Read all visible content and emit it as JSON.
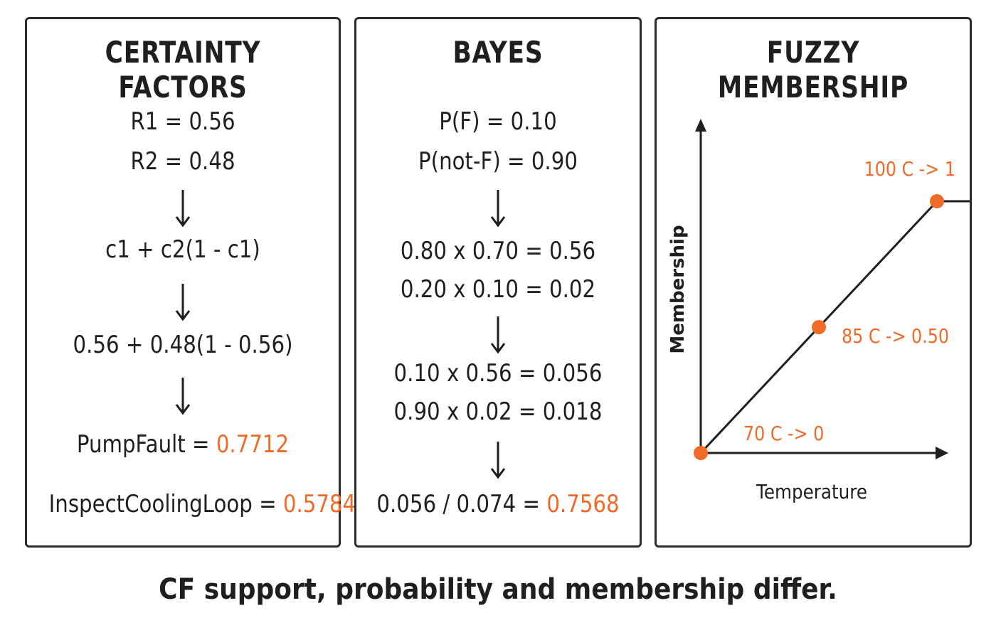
{
  "panels": {
    "cf": {
      "title": "CERTAINTY FACTORS",
      "r1": "R1 = 0.56",
      "r2": "R2 = 0.48",
      "formula": "c1 + c2(1 - c1)",
      "substitution": "0.56 + 0.48(1 - 0.56)",
      "pump_label": "PumpFault = ",
      "pump_value": "0.7712",
      "inspect_label": "InspectCoolingLoop = ",
      "inspect_value": "0.5784"
    },
    "bayes": {
      "title": "BAYES",
      "pf": "P(F) = 0.10",
      "pnotf": "P(not-F) = 0.90",
      "lik1": "0.80 x 0.70 = 0.56",
      "lik2": "0.20 x 0.10 = 0.02",
      "joint1": "0.10 x 0.56 = 0.056",
      "joint2": "0.90 x 0.02 = 0.018",
      "posterior_label": "0.056 / 0.074 = ",
      "posterior_value": "0.7568"
    },
    "fuzzy": {
      "title": "FUZZY MEMBERSHIP",
      "xlabel": "Temperature",
      "ylabel": "Membership"
    }
  },
  "chart_data": {
    "type": "line",
    "title": "FUZZY MEMBERSHIP",
    "xlabel": "Temperature",
    "ylabel": "Membership",
    "x": [
      70,
      85,
      100,
      105
    ],
    "y": [
      0,
      0.5,
      1,
      1
    ],
    "points": [
      {
        "x": 70,
        "y": 0,
        "label": "70 C -> 0"
      },
      {
        "x": 85,
        "y": 0.5,
        "label": "85 C -> 0.50"
      },
      {
        "x": 100,
        "y": 1,
        "label": "100 C -> 1"
      }
    ],
    "grid": false
  },
  "caption": "CF support, probability and membership differ.",
  "colors": {
    "accent": "#f06a28",
    "ink": "#1f1f1f",
    "border": "#2b2b2b"
  }
}
